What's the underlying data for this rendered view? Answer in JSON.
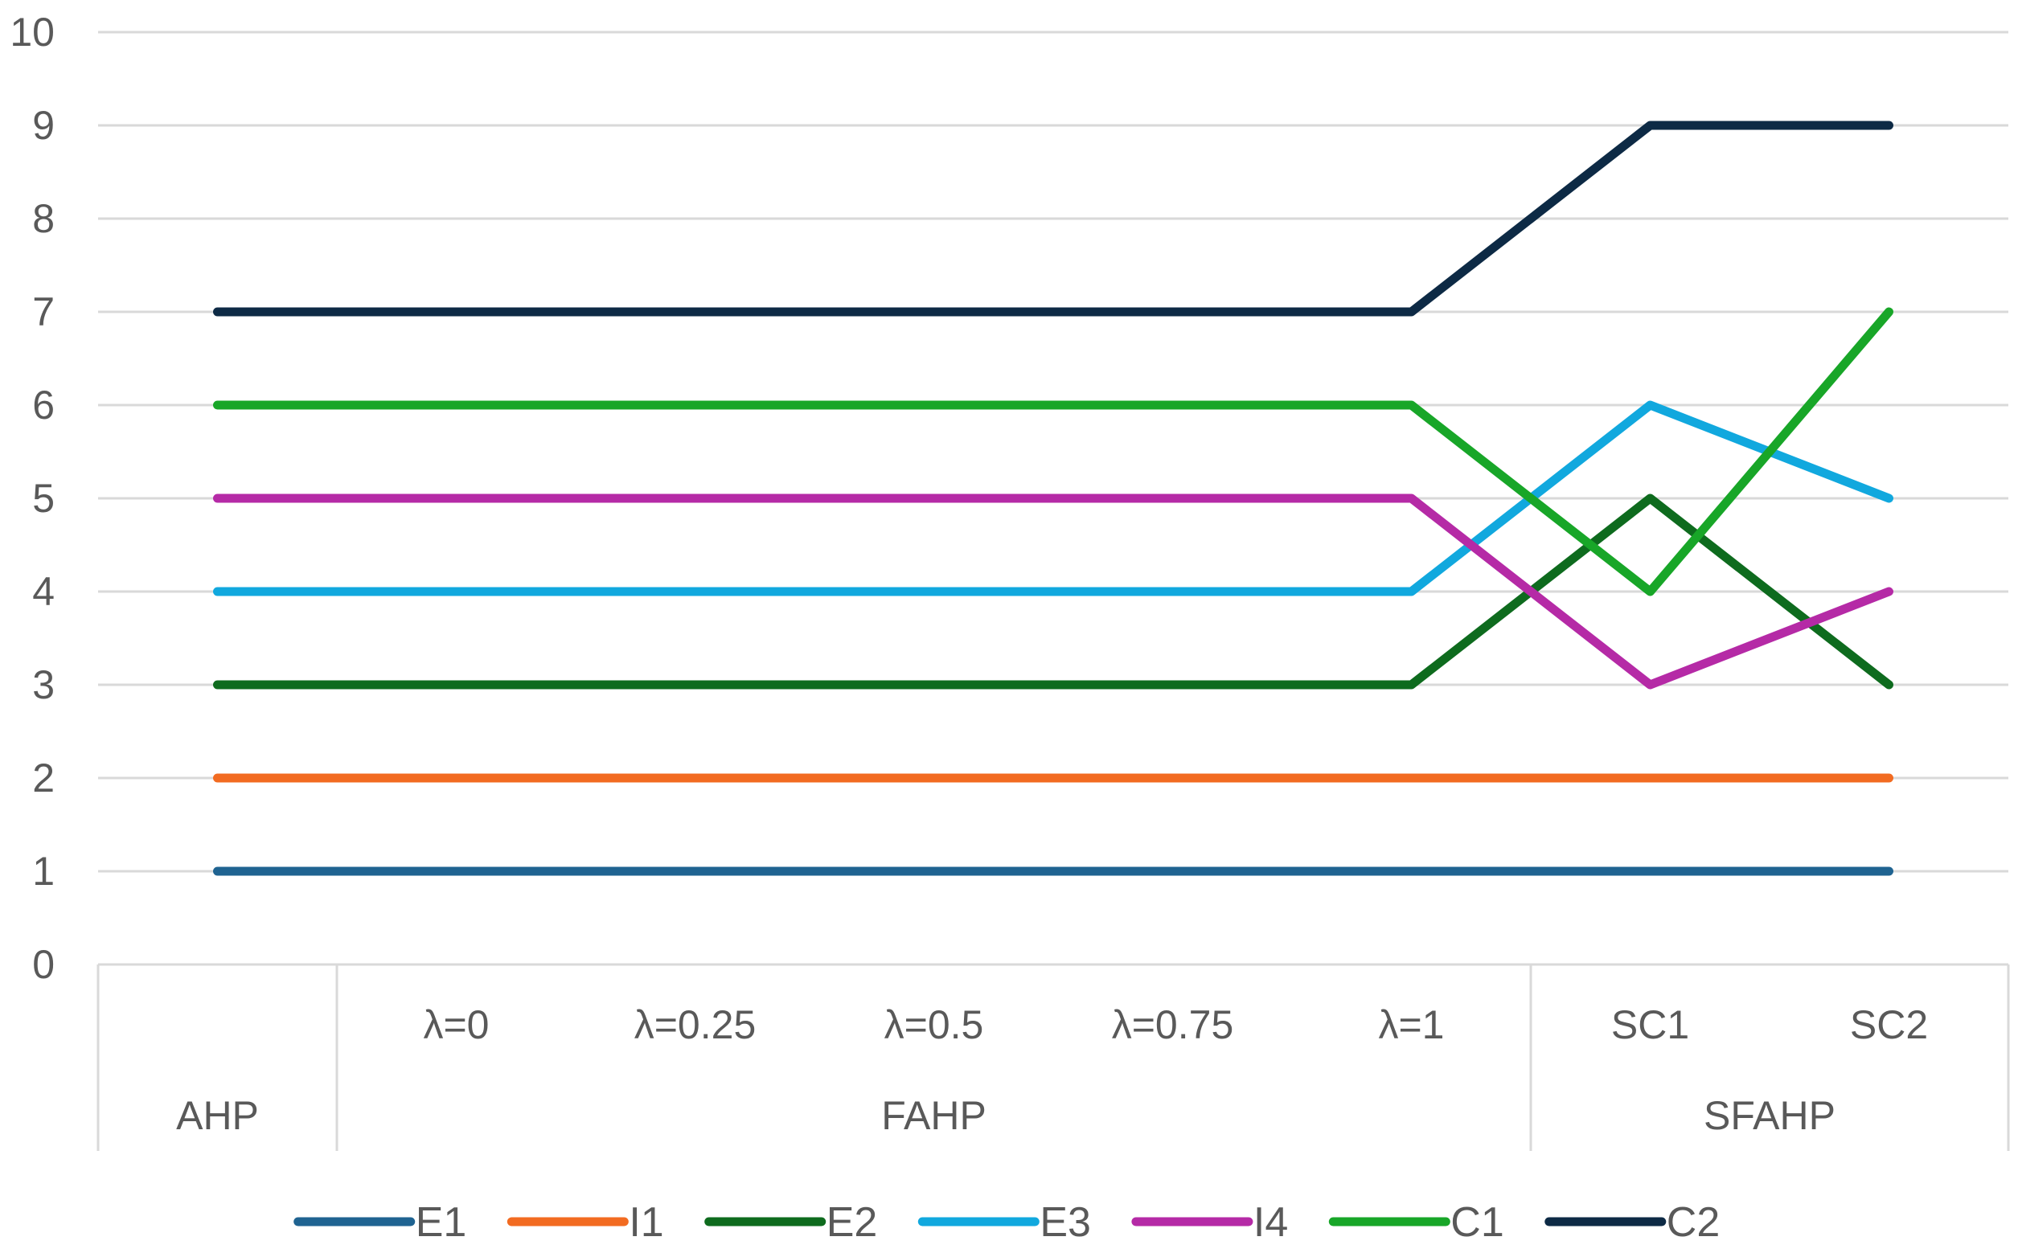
{
  "chart_data": {
    "type": "line",
    "title": "",
    "xlabel": "",
    "ylabel": "",
    "ylim": [
      0,
      10
    ],
    "yticks": [
      "0",
      "1",
      "2",
      "3",
      "4",
      "5",
      "6",
      "7",
      "8",
      "9",
      "10"
    ],
    "grid": true,
    "legend_position": "bottom",
    "categories": [
      "",
      "λ=0",
      "λ=0.25",
      "λ=0.5",
      "λ=0.75",
      "λ=1",
      "SC1",
      "SC2"
    ],
    "groups": [
      {
        "label": "AHP",
        "span": 1
      },
      {
        "label": "FAHP",
        "span": 5
      },
      {
        "label": "SFAHP",
        "span": 2
      }
    ],
    "series": [
      {
        "name": "E1",
        "color": "#1F6391",
        "values": [
          1,
          1,
          1,
          1,
          1,
          1,
          1,
          1
        ]
      },
      {
        "name": "I1",
        "color": "#F26B21",
        "values": [
          2,
          2,
          2,
          2,
          2,
          2,
          2,
          2
        ]
      },
      {
        "name": "E2",
        "color": "#0E6B1E",
        "values": [
          3,
          3,
          3,
          3,
          3,
          3,
          5,
          3
        ]
      },
      {
        "name": "E3",
        "color": "#11A8DE",
        "values": [
          4,
          4,
          4,
          4,
          4,
          4,
          6,
          5
        ]
      },
      {
        "name": "I4",
        "color": "#B52AA6",
        "values": [
          5,
          5,
          5,
          5,
          5,
          5,
          3,
          4
        ]
      },
      {
        "name": "C1",
        "color": "#18A628",
        "values": [
          6,
          6,
          6,
          6,
          6,
          6,
          4,
          7
        ]
      },
      {
        "name": "C2",
        "color": "#0D2A45",
        "values": [
          7,
          7,
          7,
          7,
          7,
          7,
          9,
          9
        ]
      }
    ]
  }
}
